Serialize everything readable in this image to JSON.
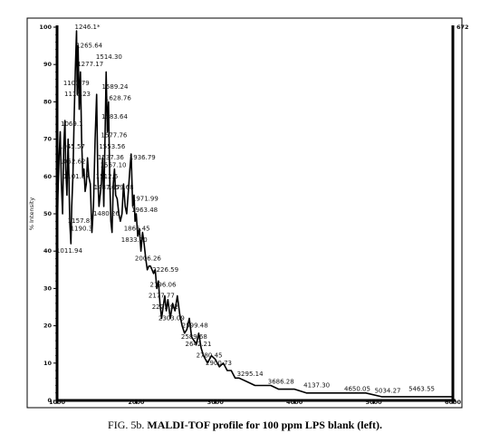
{
  "caption": {
    "prefix": "FIG. 5b. ",
    "bold": "MALDI-TOF profile for 100 ppm LPS blank (left)."
  },
  "chart_data": {
    "type": "line",
    "title": "",
    "xlabel": "",
    "ylabel": "% Intensity",
    "xlim": [
      1000,
      6000
    ],
    "ylim": [
      0,
      100
    ],
    "xticks": [
      "1000",
      "2000",
      "3000",
      "4000",
      "5000",
      "6000"
    ],
    "yticks": [
      0,
      10,
      20,
      30,
      40,
      50,
      60,
      70,
      80,
      90,
      100
    ],
    "right_top_label": "672",
    "grid": false,
    "series": [
      {
        "x": [
          1000,
          1012,
          1025,
          1040,
          1055,
          1070,
          1085,
          1100,
          1110,
          1125,
          1140,
          1150,
          1160,
          1175,
          1185,
          1200,
          1215,
          1230,
          1246,
          1255,
          1265,
          1280,
          1295,
          1310,
          1325,
          1340,
          1355,
          1370,
          1385,
          1400,
          1420,
          1440,
          1460,
          1480,
          1500,
          1515,
          1530,
          1545,
          1560,
          1575,
          1590,
          1605,
          1620,
          1635,
          1650,
          1665,
          1680,
          1695,
          1710,
          1725,
          1740,
          1760,
          1780,
          1800,
          1820,
          1840,
          1860,
          1880,
          1900,
          1920,
          1936,
          1955,
          1972,
          1985,
          2000,
          2020,
          2040,
          2060,
          2080,
          2100,
          2120,
          2140,
          2160,
          2180,
          2200,
          2220,
          2240,
          2260,
          2280,
          2300,
          2320,
          2340,
          2360,
          2380,
          2400,
          2430,
          2460,
          2490,
          2520,
          2550,
          2580,
          2610,
          2640,
          2670,
          2700,
          2730,
          2760,
          2790,
          2820,
          2850,
          2900,
          2950,
          3000,
          3050,
          3100,
          3150,
          3200,
          3250,
          3300,
          3400,
          3500,
          3600,
          3700,
          3800,
          3900,
          4000,
          4150,
          4300,
          4500,
          4700,
          4900,
          5100,
          5300,
          5500,
          5700,
          5900,
          6000
        ],
        "y": [
          40,
          55,
          65,
          72,
          58,
          50,
          68,
          75,
          62,
          55,
          70,
          60,
          48,
          42,
          52,
          60,
          75,
          88,
          99,
          82,
          95,
          78,
          88,
          70,
          60,
          62,
          56,
          58,
          65,
          60,
          58,
          45,
          52,
          70,
          82,
          60,
          52,
          55,
          58,
          65,
          52,
          70,
          88,
          72,
          80,
          60,
          48,
          45,
          58,
          62,
          55,
          54,
          50,
          48,
          50,
          58,
          52,
          50,
          56,
          62,
          66,
          52,
          55,
          48,
          50,
          44,
          46,
          40,
          45,
          42,
          38,
          35,
          36,
          36,
          35,
          34,
          35,
          30,
          32,
          26,
          22,
          25,
          28,
          24,
          27,
          22,
          26,
          24,
          28,
          23,
          20,
          18,
          19,
          22,
          17,
          16,
          15,
          18,
          14,
          12,
          10,
          12,
          11,
          9,
          10,
          8,
          8,
          6,
          6,
          5,
          4,
          4,
          4,
          3,
          3,
          3,
          2,
          2,
          2,
          2,
          2,
          1,
          1,
          1,
          1,
          1,
          1
        ]
      }
    ],
    "peak_labels": [
      {
        "x": 1246,
        "y": 100,
        "text": "1246.1*"
      },
      {
        "x": 1265,
        "y": 95,
        "text": "1265.64"
      },
      {
        "x": 1277,
        "y": 90,
        "text": "1277.17"
      },
      {
        "x": 1514,
        "y": 92,
        "text": "1514.30"
      },
      {
        "x": 1101,
        "y": 85,
        "text": "1101.79"
      },
      {
        "x": 1115,
        "y": 82,
        "text": "1115.23"
      },
      {
        "x": 1589,
        "y": 84,
        "text": "1589.24"
      },
      {
        "x": 1628,
        "y": 81,
        "text": "1628.76"
      },
      {
        "x": 1583,
        "y": 76,
        "text": "1583.64"
      },
      {
        "x": 1069,
        "y": 74,
        "text": "1069.1"
      },
      {
        "x": 1577,
        "y": 71,
        "text": "1577.76"
      },
      {
        "x": 1045,
        "y": 68,
        "text": "1045.57"
      },
      {
        "x": 1553,
        "y": 68,
        "text": "1553.56"
      },
      {
        "x": 1537,
        "y": 65,
        "text": "1537.36"
      },
      {
        "x": 1936,
        "y": 65,
        "text": "1936.79"
      },
      {
        "x": 1052,
        "y": 64,
        "text": "1052.62"
      },
      {
        "x": 1101,
        "y": 60,
        "text": "1101.87"
      },
      {
        "x": 1567,
        "y": 63,
        "text": "1567.10"
      },
      {
        "x": 1512,
        "y": 60,
        "text": "1512.6"
      },
      {
        "x": 1487,
        "y": 57,
        "text": "1487.87"
      },
      {
        "x": 1659,
        "y": 57,
        "text": "1659.68"
      },
      {
        "x": 1971,
        "y": 54,
        "text": "1971.99"
      },
      {
        "x": 1963,
        "y": 51,
        "text": "1963.48"
      },
      {
        "x": 1480,
        "y": 50,
        "text": "1480.26"
      },
      {
        "x": 1157,
        "y": 48,
        "text": "1157.87"
      },
      {
        "x": 1190,
        "y": 46,
        "text": "1190.3"
      },
      {
        "x": 1866,
        "y": 46,
        "text": "1866.45"
      },
      {
        "x": 1833,
        "y": 43,
        "text": "1833.20"
      },
      {
        "x": 1011,
        "y": 40,
        "text": "1011.94"
      },
      {
        "x": 2006,
        "y": 38,
        "text": "2006.26"
      },
      {
        "x": 2226,
        "y": 35,
        "text": "2226.59"
      },
      {
        "x": 2196,
        "y": 31,
        "text": "2196.06"
      },
      {
        "x": 2177,
        "y": 28,
        "text": "2177.77"
      },
      {
        "x": 2221,
        "y": 25,
        "text": "2221.92"
      },
      {
        "x": 2303,
        "y": 22,
        "text": "2303.09"
      },
      {
        "x": 2599,
        "y": 20,
        "text": "2599.48"
      },
      {
        "x": 2589,
        "y": 17,
        "text": "2589.68"
      },
      {
        "x": 2642,
        "y": 15,
        "text": "2642.21"
      },
      {
        "x": 2780,
        "y": 12,
        "text": "2780.45"
      },
      {
        "x": 2900,
        "y": 10,
        "text": "2900.73"
      },
      {
        "x": 3295,
        "y": 7,
        "text": "3295.14"
      },
      {
        "x": 3686,
        "y": 5,
        "text": "3686.28"
      },
      {
        "x": 4137,
        "y": 4,
        "text": "4137.30"
      },
      {
        "x": 4650,
        "y": 3,
        "text": "4650.05"
      },
      {
        "x": 5034,
        "y": 2.5,
        "text": "5034.27"
      },
      {
        "x": 5463,
        "y": 3,
        "text": "5463.55"
      }
    ]
  }
}
